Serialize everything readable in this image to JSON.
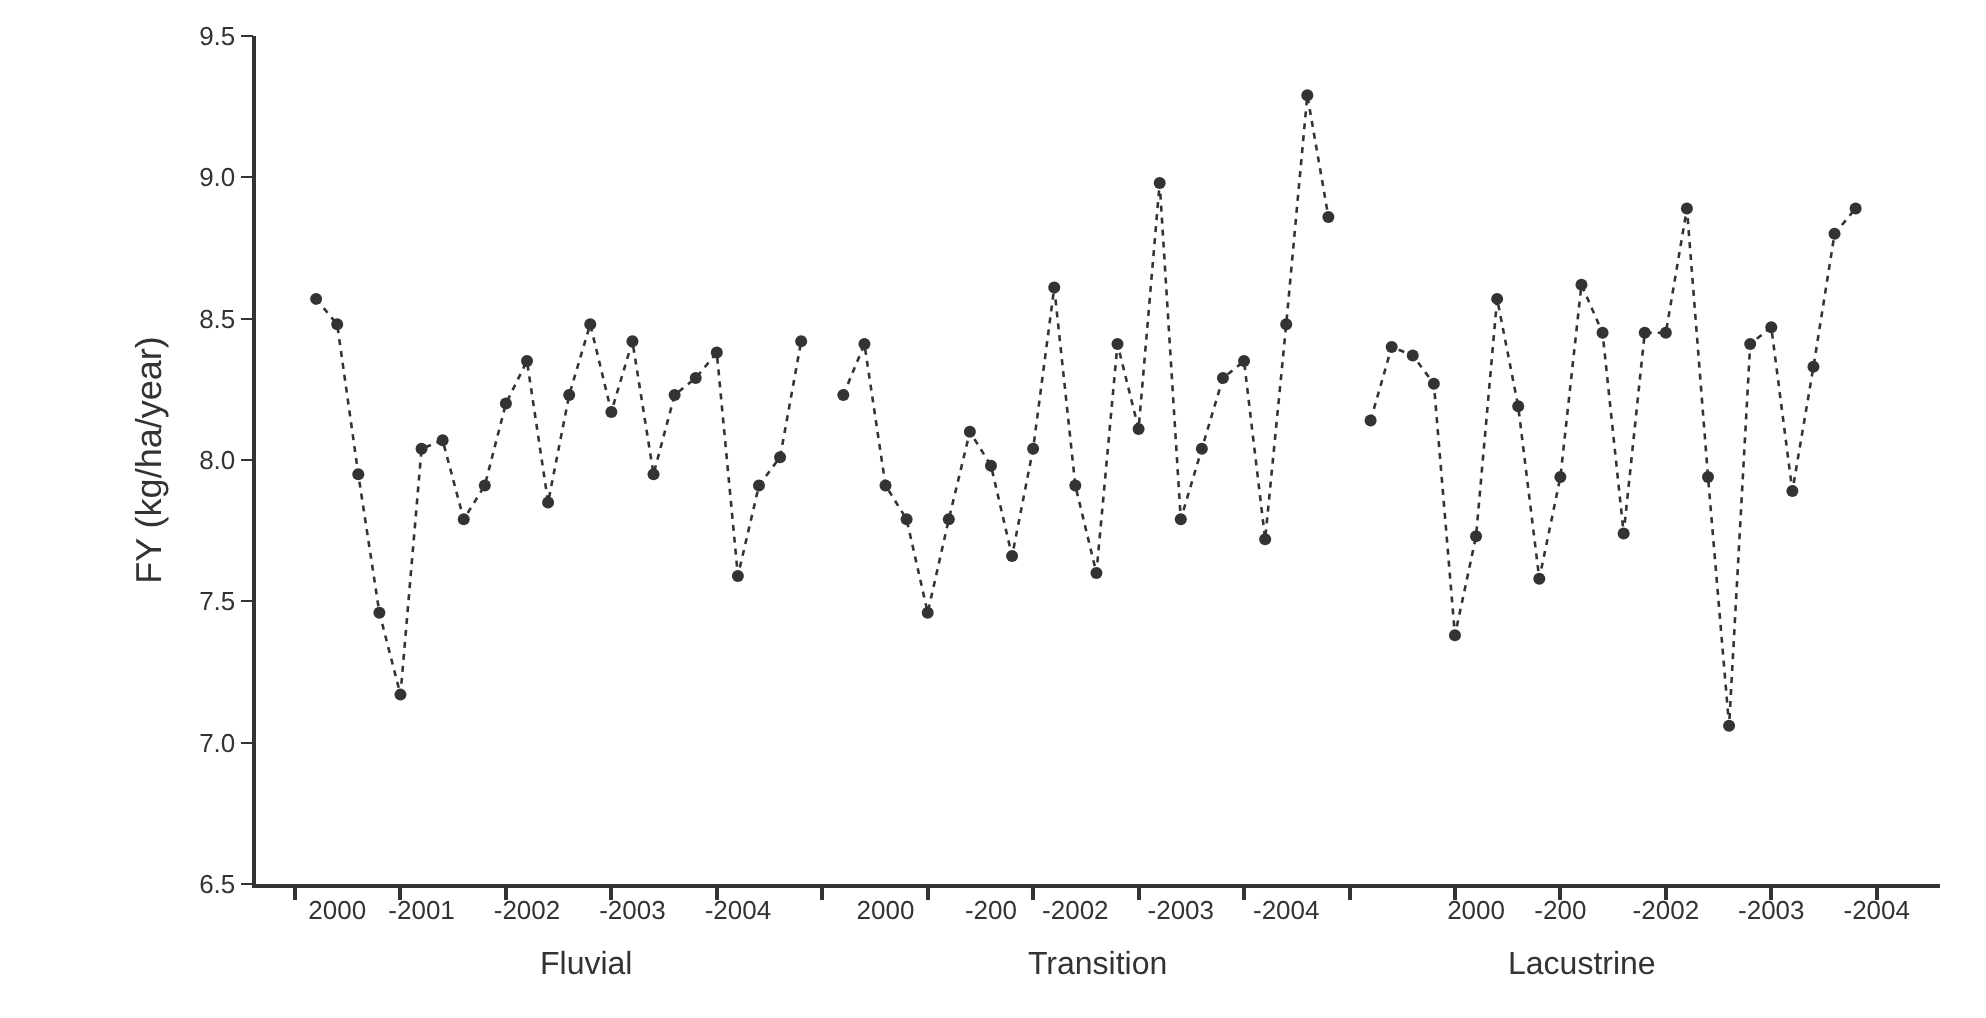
{
  "chart_data": {
    "type": "line",
    "ylabel": "FY (kg/ha/year)",
    "categories": [
      null,
      "2000",
      null,
      null,
      null,
      "-2001",
      null,
      null,
      null,
      null,
      "-2002",
      null,
      null,
      null,
      null,
      "-2003",
      null,
      null,
      null,
      null,
      "-2004",
      null,
      null,
      null,
      null,
      null,
      null,
      "2000",
      null,
      null,
      null,
      null,
      "-200",
      null,
      null,
      null,
      "-2002",
      null,
      null,
      null,
      null,
      "-2003",
      null,
      null,
      null,
      null,
      "-2004",
      null,
      null,
      null,
      null,
      null,
      null,
      null,
      null,
      "2000",
      null,
      null,
      null,
      "-200",
      null,
      null,
      null,
      null,
      "-2002",
      null,
      null,
      null,
      null,
      "-2003",
      null,
      null,
      null,
      null,
      "-2004"
    ],
    "series": [
      {
        "color": "#333333",
        "values": [
          8.57,
          8.48,
          7.95,
          7.46,
          7.17,
          8.04,
          8.07,
          7.79,
          7.91,
          8.2,
          8.35,
          7.85,
          8.23,
          8.48,
          8.17,
          8.42,
          7.95,
          8.23,
          8.29,
          8.38,
          7.59,
          7.91,
          8.01,
          8.42,
          null,
          8.23,
          8.41,
          7.91,
          7.79,
          7.46,
          7.79,
          8.1,
          7.98,
          7.66,
          8.04,
          8.61,
          7.91,
          7.6,
          8.41,
          8.11,
          8.98,
          7.79,
          8.04,
          8.29,
          8.35,
          7.72,
          8.48,
          9.29,
          8.86,
          null,
          8.14,
          8.4,
          8.37,
          8.27,
          7.38,
          7.73,
          8.57,
          8.19,
          7.58,
          7.94,
          8.62,
          8.45,
          7.74,
          8.45,
          8.45,
          8.89,
          7.94,
          7.06,
          8.41,
          8.47,
          7.89,
          8.33,
          8.8,
          8.89,
          null
        ]
      }
    ],
    "marker": "circle",
    "line_style": "dotted",
    "ylim": [
      6.5,
      9.5
    ],
    "yticks": [
      6.5,
      {
        "value": 7,
        "label": "7.0"
      },
      7.5,
      {
        "value": 8,
        "label": "8.0"
      },
      8.5,
      {
        "value": 9,
        "label": "9.0"
      },
      9.5
    ],
    "annotations": [
      "Fluvial",
      "Transition",
      "Lacustrine"
    ]
  }
}
